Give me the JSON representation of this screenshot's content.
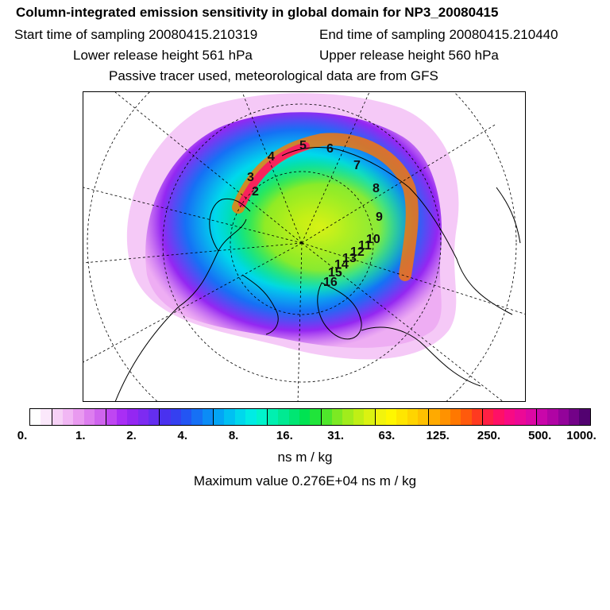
{
  "header": {
    "title": "Column-integrated emission sensitivity in global domain for NP3_20080415",
    "start": "Start time of sampling 20080415.210319",
    "end": "End time of sampling 20080415.210440",
    "lower": "Lower release height  561 hPa",
    "upper": "Upper release height  560 hPa",
    "info": "Passive tracer used, meteorological data are from GFS"
  },
  "legend": {
    "ticks": [
      "0.",
      "1.",
      "2.",
      "4.",
      "8.",
      "16.",
      "31.",
      "63.",
      "125.",
      "250.",
      "500.",
      "1000."
    ],
    "colors": [
      "#ffffff",
      "#fbe8fb",
      "#f6d1f6",
      "#f1b7f4",
      "#e99af0",
      "#dd7eef",
      "#cf64ee",
      "#bf46f2",
      "#a92ef5",
      "#9427f2",
      "#7d2bf1",
      "#642ef0",
      "#4a31ef",
      "#3540f0",
      "#2355f3",
      "#1670f5",
      "#0b8cf6",
      "#03a5f5",
      "#00c0f2",
      "#00d8ec",
      "#00ece4",
      "#00f4cc",
      "#00f0b0",
      "#00ea92",
      "#00e673",
      "#00e352",
      "#20e43a",
      "#4fe62b",
      "#7ce923",
      "#a1ec1c",
      "#c0ef15",
      "#dbf211",
      "#f2f40c",
      "#fff700",
      "#ffe600",
      "#ffd400",
      "#ffc000",
      "#ffaa00",
      "#ff9200",
      "#ff7800",
      "#ff5a0c",
      "#ff3a20",
      "#ff1f44",
      "#ff1066",
      "#f80a84",
      "#ec0996",
      "#dc08a4",
      "#c906aa",
      "#b004a4",
      "#93039a",
      "#730288",
      "#520270"
    ],
    "unit": "ns m / kg",
    "max_value": "Maximum value  0.276E+04 ns m / kg"
  },
  "map": {
    "trajectory_labels": [
      "2",
      "3",
      "4",
      "5",
      "6",
      "7",
      "8",
      "9",
      "10",
      "11",
      "12",
      "13",
      "14",
      "15",
      "16"
    ]
  }
}
